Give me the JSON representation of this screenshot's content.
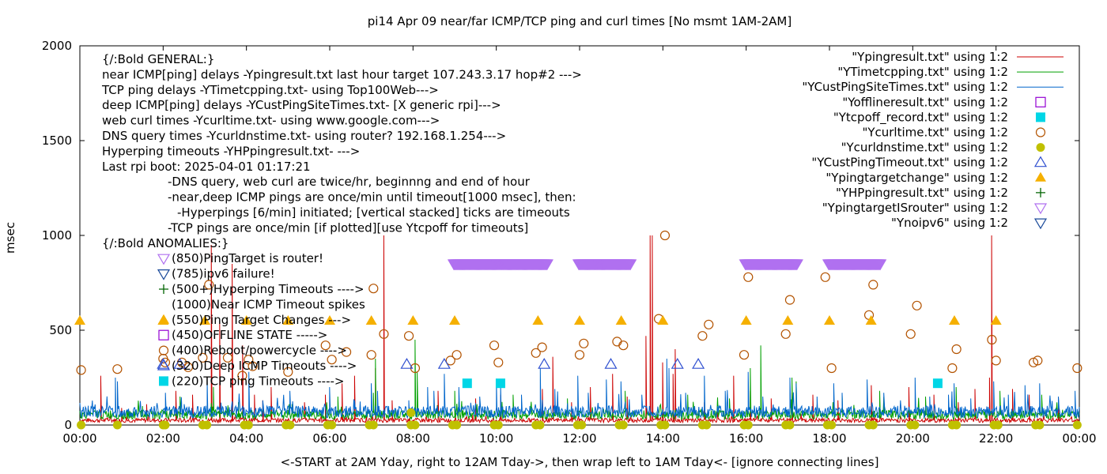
{
  "chart_data": {
    "type": "line",
    "title": "pi14 Apr 09  near/far ICMP/TCP ping and curl times [No msmt 1AM-2AM]",
    "xlabel": "<-START at 2AM Yday, right to 12AM Tday->, then wrap left to 1AM Tday<- [ignore connecting lines]",
    "ylabel": "msec",
    "xlim": [
      0,
      24
    ],
    "ylim": [
      0,
      2000
    ],
    "xticks": [
      0,
      2,
      4,
      6,
      8,
      10,
      12,
      14,
      16,
      18,
      20,
      22,
      24
    ],
    "xtick_labels": [
      "00:00",
      "02:00",
      "04:00",
      "06:00",
      "08:00",
      "10:00",
      "12:00",
      "14:00",
      "16:00",
      "18:00",
      "20:00",
      "22:00",
      "00:00"
    ],
    "yticks": [
      0,
      500,
      1000,
      1500,
      2000
    ],
    "ytick_labels": [
      "0",
      "500",
      "1000",
      "1500",
      "2000"
    ],
    "grid": false,
    "legend_position": "top-right",
    "annotations": [
      "{/:Bold GENERAL:}",
      "near ICMP[ping] delays -Ypingresult.txt last hour target 107.243.3.17 hop#2 --->",
      "TCP ping delays -YTimetcpping.txt- using Top100Web--->",
      "deep ICMP[ping] delays -YCustPingSiteTimes.txt- [X generic rpi]--->",
      "web curl times -Ycurltime.txt- using www.google.com--->",
      "DNS query times -Ycurldnstime.txt- using router? 192.168.1.254--->",
      "Hyperping timeouts -YHPpingresult.txt- --->",
      "Last rpi boot: 2025-04-01 01:17:21",
      "-DNS query, web curl are twice/hr, beginnng and end of hour",
      "-near,deep ICMP pings are once/min until timeout[1000 msec], then:",
      "-Hyperpings [6/min] initiated; [vertical stacked] ticks are timeouts",
      "-TCP pings are once/min [if plotted][use Ytcpoff for timeouts]",
      "{/:Bold ANOMALIES:}",
      "(850)PingTarget is router!",
      "(785)ipv6 failure!",
      "(500+)Hyperping Timeouts ---->",
      "(1000)Near ICMP Timeout spikes",
      "(550)Ping Target Changes --->",
      "(450)OFFLINE STATE ----->",
      "(400)Reboot/powercycle ---->",
      "(320)Deep ICMP Timeouts ---->",
      "(220)TCP ping Timeouts ---->"
    ],
    "series": [
      {
        "name": "\"Ypingresult.txt\" using 1:2",
        "style": "line",
        "color": "#cc0000",
        "baseline": 25,
        "spikes": [
          [
            0.5,
            260
          ],
          [
            1.0,
            90
          ],
          [
            1.6,
            110
          ],
          [
            2.3,
            180
          ],
          [
            2.7,
            160
          ],
          [
            3.15,
            950
          ],
          [
            3.35,
            550
          ],
          [
            3.65,
            850
          ],
          [
            3.9,
            420
          ],
          [
            4.2,
            160
          ],
          [
            4.4,
            130
          ],
          [
            4.6,
            200
          ],
          [
            5.4,
            120
          ],
          [
            5.9,
            160
          ],
          [
            6.3,
            220
          ],
          [
            6.6,
            260
          ],
          [
            7.1,
            300
          ],
          [
            7.3,
            1000
          ],
          [
            7.5,
            130
          ],
          [
            8.6,
            180
          ],
          [
            9.5,
            140
          ],
          [
            10.1,
            160
          ],
          [
            11.1,
            190
          ],
          [
            11.35,
            360
          ],
          [
            11.8,
            120
          ],
          [
            12.25,
            200
          ],
          [
            12.8,
            270
          ],
          [
            13.15,
            150
          ],
          [
            13.6,
            470
          ],
          [
            13.7,
            1000
          ],
          [
            13.75,
            1000
          ],
          [
            14.0,
            330
          ],
          [
            14.25,
            270
          ],
          [
            14.3,
            400
          ],
          [
            15.0,
            120
          ],
          [
            15.7,
            260
          ],
          [
            16.1,
            180
          ],
          [
            16.6,
            140
          ],
          [
            17.1,
            170
          ],
          [
            17.6,
            160
          ],
          [
            18.2,
            130
          ],
          [
            19.0,
            210
          ],
          [
            19.9,
            200
          ],
          [
            20.5,
            160
          ],
          [
            21.1,
            120
          ],
          [
            21.5,
            190
          ],
          [
            21.85,
            250
          ],
          [
            21.9,
            1000
          ],
          [
            22.4,
            190
          ],
          [
            22.8,
            160
          ],
          [
            23.5,
            150
          ]
        ]
      },
      {
        "name": "\"YTimetcpping.txt\" using 1:2",
        "style": "line",
        "color": "#00a000",
        "baseline": 55,
        "spikes": [
          [
            1.5,
            100
          ],
          [
            2.4,
            150
          ],
          [
            3.2,
            200
          ],
          [
            3.8,
            120
          ],
          [
            5.1,
            110
          ],
          [
            6.2,
            150
          ],
          [
            7.05,
            170
          ],
          [
            7.1,
            350
          ],
          [
            8.05,
            450
          ],
          [
            8.1,
            280
          ],
          [
            9.0,
            180
          ],
          [
            10.4,
            160
          ],
          [
            11.7,
            140
          ],
          [
            13.1,
            180
          ],
          [
            14.6,
            160
          ],
          [
            15.6,
            140
          ],
          [
            16.1,
            300
          ],
          [
            16.35,
            420
          ],
          [
            17.1,
            250
          ],
          [
            17.2,
            230
          ],
          [
            18.3,
            160
          ],
          [
            19.2,
            180
          ],
          [
            20.3,
            150
          ],
          [
            21.05,
            200
          ],
          [
            22.1,
            180
          ],
          [
            23.1,
            160
          ]
        ]
      },
      {
        "name": "\"YCustPingSiteTimes.txt\" using 1:2",
        "style": "line",
        "color": "#0066cc",
        "baseline": 70,
        "spikes": [
          [
            0.2,
            90
          ],
          [
            0.85,
            250
          ],
          [
            0.9,
            230
          ],
          [
            1.7,
            80
          ],
          [
            2.05,
            170
          ],
          [
            2.5,
            110
          ],
          [
            3.05,
            240
          ],
          [
            3.5,
            100
          ],
          [
            4.05,
            280
          ],
          [
            4.4,
            130
          ],
          [
            5.05,
            180
          ],
          [
            5.5,
            100
          ],
          [
            6.0,
            200
          ],
          [
            6.6,
            130
          ],
          [
            7.0,
            220
          ],
          [
            7.15,
            180
          ],
          [
            7.9,
            130
          ],
          [
            8.35,
            200
          ],
          [
            8.5,
            180
          ],
          [
            8.75,
            270
          ],
          [
            9.1,
            200
          ],
          [
            9.6,
            150
          ],
          [
            10.0,
            230
          ],
          [
            10.1,
            210
          ],
          [
            10.6,
            160
          ],
          [
            11.05,
            300
          ],
          [
            11.4,
            190
          ],
          [
            11.95,
            260
          ],
          [
            12.2,
            170
          ],
          [
            12.65,
            240
          ],
          [
            13.0,
            230
          ],
          [
            13.5,
            160
          ],
          [
            14.1,
            350
          ],
          [
            14.15,
            300
          ],
          [
            14.55,
            170
          ],
          [
            15.0,
            260
          ],
          [
            15.5,
            180
          ],
          [
            16.05,
            280
          ],
          [
            16.4,
            150
          ],
          [
            17.05,
            250
          ],
          [
            17.2,
            220
          ],
          [
            17.7,
            150
          ],
          [
            18.1,
            220
          ],
          [
            18.3,
            170
          ],
          [
            18.9,
            240
          ],
          [
            19.3,
            170
          ],
          [
            19.7,
            130
          ],
          [
            20.05,
            250
          ],
          [
            20.4,
            150
          ],
          [
            20.85,
            160
          ],
          [
            21.0,
            220
          ],
          [
            21.4,
            140
          ],
          [
            21.95,
            230
          ],
          [
            22.3,
            160
          ],
          [
            22.7,
            210
          ],
          [
            23.05,
            220
          ],
          [
            23.5,
            150
          ],
          [
            23.9,
            180
          ]
        ]
      }
    ],
    "markers": [
      {
        "name": "\"Yofflineresult.txt\" using 1:2",
        "shape": "open-square",
        "color": "#9400d3",
        "points": []
      },
      {
        "name": "\"Ytcpoff_record.txt\" using 1:2",
        "shape": "filled-square",
        "color": "#00d6e6",
        "points": [
          [
            9.3,
            220
          ],
          [
            10.1,
            220
          ],
          [
            20.6,
            220
          ]
        ]
      },
      {
        "name": "\"Ycurltime.txt\" using 1:2",
        "shape": "open-circle",
        "color": "#b35300",
        "points": [
          [
            0.03,
            290
          ],
          [
            0.9,
            295
          ],
          [
            2.0,
            350
          ],
          [
            2.05,
            330
          ],
          [
            2.45,
            330
          ],
          [
            2.6,
            305
          ],
          [
            2.95,
            355
          ],
          [
            3.1,
            740
          ],
          [
            3.55,
            355
          ],
          [
            3.9,
            260
          ],
          [
            4.05,
            345
          ],
          [
            4.15,
            310
          ],
          [
            5.0,
            280
          ],
          [
            5.9,
            420
          ],
          [
            6.05,
            345
          ],
          [
            6.4,
            385
          ],
          [
            7.0,
            370
          ],
          [
            7.05,
            720
          ],
          [
            7.3,
            480
          ],
          [
            7.9,
            470
          ],
          [
            8.05,
            300
          ],
          [
            8.9,
            340
          ],
          [
            9.05,
            370
          ],
          [
            9.95,
            420
          ],
          [
            10.05,
            330
          ],
          [
            10.95,
            380
          ],
          [
            11.1,
            410
          ],
          [
            12.0,
            370
          ],
          [
            12.1,
            430
          ],
          [
            12.9,
            440
          ],
          [
            13.05,
            420
          ],
          [
            13.9,
            560
          ],
          [
            14.05,
            1000
          ],
          [
            14.95,
            470
          ],
          [
            15.1,
            530
          ],
          [
            15.95,
            370
          ],
          [
            16.05,
            780
          ],
          [
            16.95,
            480
          ],
          [
            17.05,
            660
          ],
          [
            17.9,
            780
          ],
          [
            18.05,
            300
          ],
          [
            18.95,
            580
          ],
          [
            19.05,
            740
          ],
          [
            19.95,
            480
          ],
          [
            20.1,
            630
          ],
          [
            20.95,
            300
          ],
          [
            21.05,
            400
          ],
          [
            21.9,
            450
          ],
          [
            22.0,
            340
          ],
          [
            22.9,
            330
          ],
          [
            23.0,
            340
          ],
          [
            23.95,
            300
          ]
        ]
      },
      {
        "name": "\"Ycurldnstime.txt\" using 1:2",
        "shape": "filled-circle",
        "color": "#c0c000",
        "points": [
          [
            0.03,
            0
          ],
          [
            0.9,
            0
          ],
          [
            2.0,
            0
          ],
          [
            2.05,
            0
          ],
          [
            2.95,
            0
          ],
          [
            3.05,
            0
          ],
          [
            3.95,
            0
          ],
          [
            4.05,
            0
          ],
          [
            4.95,
            0
          ],
          [
            5.05,
            0
          ],
          [
            5.95,
            0
          ],
          [
            6.05,
            0
          ],
          [
            6.95,
            0
          ],
          [
            7.05,
            0
          ],
          [
            7.95,
            0
          ],
          [
            8.05,
            0
          ],
          [
            8.95,
            0
          ],
          [
            9.05,
            0
          ],
          [
            9.95,
            0
          ],
          [
            10.05,
            0
          ],
          [
            10.95,
            0
          ],
          [
            11.05,
            0
          ],
          [
            11.95,
            0
          ],
          [
            12.05,
            0
          ],
          [
            12.95,
            0
          ],
          [
            13.05,
            0
          ],
          [
            13.95,
            0
          ],
          [
            14.05,
            0
          ],
          [
            14.95,
            0
          ],
          [
            15.05,
            0
          ],
          [
            15.95,
            0
          ],
          [
            16.05,
            0
          ],
          [
            16.95,
            0
          ],
          [
            17.05,
            0
          ],
          [
            17.95,
            0
          ],
          [
            18.05,
            0
          ],
          [
            18.95,
            0
          ],
          [
            19.05,
            0
          ],
          [
            19.95,
            0
          ],
          [
            20.05,
            0
          ],
          [
            20.95,
            0
          ],
          [
            21.05,
            0
          ],
          [
            21.95,
            0
          ],
          [
            22.05,
            0
          ],
          [
            22.95,
            0
          ],
          [
            23.05,
            0
          ],
          [
            23.95,
            0
          ],
          [
            7.95,
            65
          ]
        ]
      },
      {
        "name": "\"YCustPingTimeout.txt\" using 1:2",
        "shape": "open-triangle-up",
        "color": "#3050d0",
        "points": [
          [
            2.0,
            320
          ],
          [
            2.4,
            320
          ],
          [
            7.85,
            320
          ],
          [
            8.75,
            320
          ],
          [
            11.15,
            320
          ],
          [
            12.75,
            320
          ],
          [
            14.35,
            320
          ],
          [
            14.85,
            320
          ]
        ]
      },
      {
        "name": "\"Ypingtargetchange\" using 1:2",
        "shape": "filled-triangle-up",
        "color": "#f5b000",
        "points": [
          [
            0.0,
            550
          ],
          [
            2.0,
            550
          ],
          [
            3.0,
            550
          ],
          [
            4.0,
            550
          ],
          [
            5.0,
            550
          ],
          [
            6.0,
            550
          ],
          [
            7.0,
            550
          ],
          [
            8.0,
            550
          ],
          [
            9.0,
            550
          ],
          [
            11.0,
            550
          ],
          [
            12.0,
            550
          ],
          [
            13.0,
            550
          ],
          [
            14.0,
            550
          ],
          [
            16.0,
            550
          ],
          [
            17.0,
            550
          ],
          [
            18.0,
            550
          ],
          [
            19.0,
            550
          ],
          [
            21.0,
            550
          ],
          [
            22.0,
            550
          ]
        ]
      },
      {
        "name": "\"YHPpingresult.txt\" using 1:2",
        "shape": "plus",
        "color": "#006400",
        "points": []
      },
      {
        "name": "\"YpingtargetISrouter\" using 1:2",
        "shape": "open-triangle-down",
        "color": "#b070f0",
        "points": [],
        "bands": [
          [
            8.98,
            11.22,
            850
          ],
          [
            11.98,
            13.22,
            850
          ],
          [
            15.98,
            17.22,
            850
          ],
          [
            17.98,
            19.22,
            850
          ]
        ]
      },
      {
        "name": "\"Ynoipv6\" using 1:2",
        "shape": "open-triangle-down",
        "color": "#1a4a9a",
        "points": []
      }
    ]
  }
}
